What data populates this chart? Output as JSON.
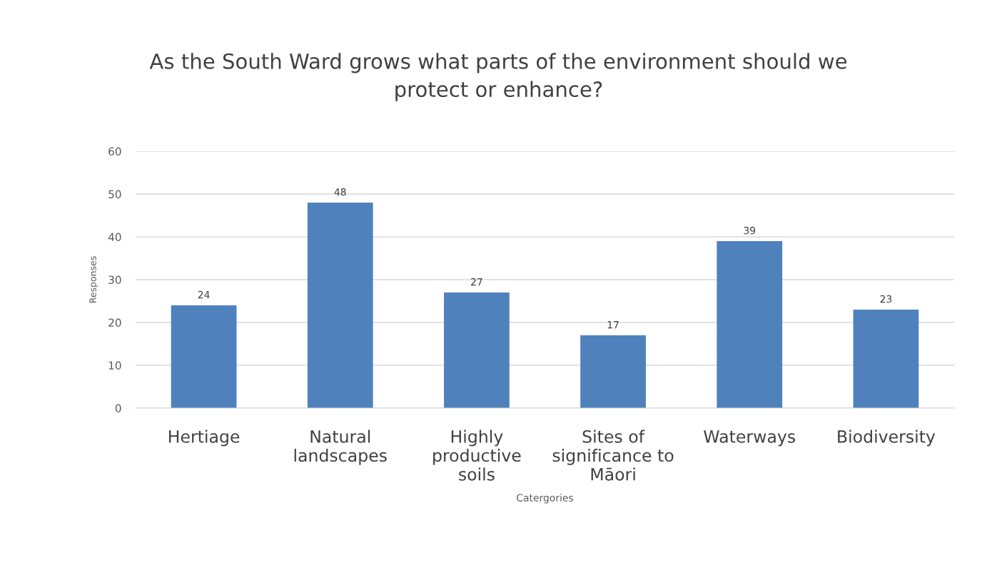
{
  "chart_data": {
    "type": "bar",
    "title": "As the South Ward grows what parts of the environment should we\nprotect or enhance?",
    "xlabel": "Catergories",
    "ylabel": "Responses",
    "categories": [
      "Hertiage",
      "Natural\nlandscapes",
      "Highly\nproductive\nsoils",
      "Sites of\nsignificance to\nMāori",
      "Waterways",
      "Biodiversity"
    ],
    "values": [
      24,
      48,
      27,
      17,
      39,
      23
    ],
    "color": "#4f81bd",
    "ylim": [
      0,
      60
    ],
    "yticks": [
      0,
      10,
      20,
      30,
      40,
      50,
      60
    ],
    "grid": "y",
    "data_labels": true
  }
}
